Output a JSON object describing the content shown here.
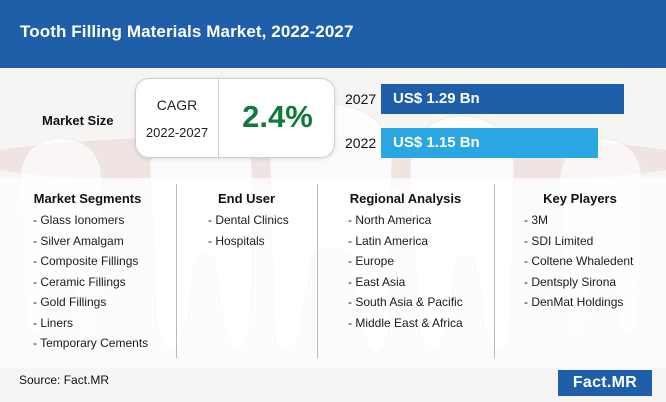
{
  "header": {
    "title": "Tooth Filling Materials Market, 2022-2027"
  },
  "market_size": {
    "label": "Market Size",
    "cagr_label": "CAGR",
    "cagr_period": "2022-2027",
    "cagr_value": "2.4%"
  },
  "chart_data": {
    "type": "bar",
    "orientation": "horizontal",
    "categories": [
      "2027",
      "2022"
    ],
    "values": [
      1.29,
      1.15
    ],
    "data_labels": [
      "US$ 1.29 Bn",
      "US$ 1.15 Bn"
    ],
    "unit": "US$ Bn",
    "colors": [
      "#1f5faa",
      "#2aa7e2"
    ],
    "grid": false,
    "legend": "none"
  },
  "columns": [
    {
      "heading": "Market Segments",
      "items": [
        "- Glass Ionomers",
        "- Silver Amalgam",
        "- Composite Fillings",
        "- Ceramic Fillings",
        "- Gold Fillings",
        "- Liners",
        "- Temporary Cements"
      ]
    },
    {
      "heading": "End User",
      "items": [
        "- Dental Clinics",
        "- Hospitals"
      ]
    },
    {
      "heading": "Regional Analysis",
      "items": [
        "- North America",
        "- Latin America",
        "- Europe",
        "- East Asia",
        "- South Asia & Pacific",
        "- Middle East & Africa"
      ]
    },
    {
      "heading": "Key Players",
      "items": [
        "- 3M",
        "- SDI Limited",
        "- Coltene Whaledent",
        "- Dentsply Sirona",
        "- DenMat Holdings"
      ]
    }
  ],
  "footer": {
    "source": "Source: Fact.MR",
    "logo": "Fact.MR"
  },
  "colors": {
    "brand_blue": "#1f5faa",
    "light_blue": "#2aa7e2",
    "cagr_green": "#0f7a3a"
  }
}
